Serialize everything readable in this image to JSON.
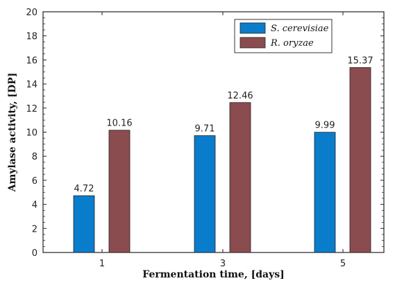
{
  "chart_data": {
    "type": "bar",
    "categories": [
      "1",
      "3",
      "5"
    ],
    "series": [
      {
        "name": "S. cerevisiae",
        "values": [
          4.72,
          9.71,
          9.99
        ],
        "color": "#0a7ccc"
      },
      {
        "name": "R. oryzae",
        "values": [
          10.16,
          12.46,
          15.37
        ],
        "color": "#8b4c4f"
      }
    ],
    "data_labels": [
      [
        "4.72",
        "9.71",
        "9.99"
      ],
      [
        "10.16",
        "12.46",
        "15.37"
      ]
    ],
    "xlabel": "Fermentation time, [days]",
    "ylabel": "Amylase activity, [DP]",
    "ylim": [
      0,
      20
    ],
    "yticks": [
      0,
      2,
      4,
      6,
      8,
      10,
      12,
      14,
      16,
      18,
      20
    ],
    "grid": false,
    "legend_position": "top-right"
  }
}
